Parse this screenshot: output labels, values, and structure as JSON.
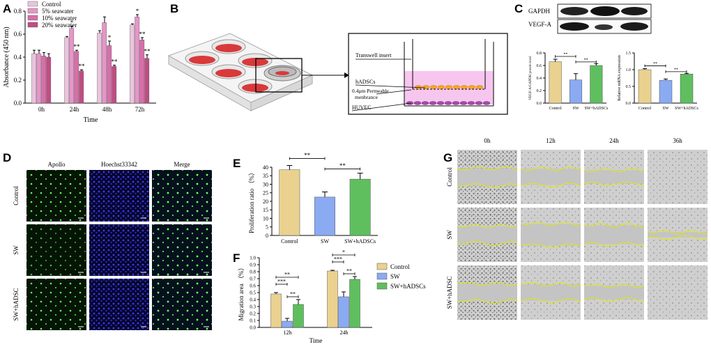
{
  "panel_labels": [
    "A",
    "B",
    "C",
    "D",
    "E",
    "F",
    "G"
  ],
  "colors": {
    "control": "#ead18f",
    "sw": "#8aaaf2",
    "swhadsc": "#5fbf5f",
    "a_control": "#eac4dc",
    "a_5": "#e596c8",
    "a_10": "#d86fa8",
    "a_20": "#c04d82"
  },
  "chart_data": [
    {
      "panel": "A",
      "type": "bar",
      "ylabel": "Absorbance (450 nm)",
      "xlabel": "Time",
      "ylim": [
        0,
        0.8
      ],
      "yticks": [
        "0.0",
        "0.2",
        "0.4",
        "0.6",
        "0.8"
      ],
      "categories": [
        "0h",
        "24h",
        "48h",
        "72h"
      ],
      "legend_position": "top-left",
      "series": [
        {
          "name": "Control",
          "values": [
            0.43,
            0.57,
            0.61,
            0.68
          ],
          "errors": [
            0.03,
            0.01,
            0.02,
            0.01
          ]
        },
        {
          "name": "5% seawater",
          "values": [
            0.43,
            0.65,
            0.7,
            0.75
          ],
          "errors": [
            0.03,
            0.02,
            0.05,
            0.02
          ]
        },
        {
          "name": "10% seawater",
          "values": [
            0.41,
            0.45,
            0.5,
            0.55
          ],
          "errors": [
            0.03,
            0.01,
            0.04,
            0.02
          ]
        },
        {
          "name": "20% seawater",
          "values": [
            0.4,
            0.28,
            0.32,
            0.39
          ],
          "errors": [
            0.03,
            0.01,
            0.01,
            0.03
          ]
        }
      ],
      "significance": [
        {
          "category": "24h",
          "marks": [
            "*",
            "**",
            "**"
          ]
        },
        {
          "category": "48h",
          "marks": [
            "",
            "*",
            "**"
          ]
        },
        {
          "category": "72h",
          "marks": [
            "*",
            "**",
            "**"
          ]
        }
      ]
    },
    {
      "panel": "C-left",
      "type": "bar",
      "ylabel": "VEGF-A/GAPDH protein level",
      "ylim": [
        0,
        0.8
      ],
      "yticks": [
        "0.0",
        "0.2",
        "0.4",
        "0.6",
        "0.8"
      ],
      "categories": [
        "Control",
        "SW",
        "SW+hADSCs"
      ],
      "values": [
        0.66,
        0.37,
        0.6
      ],
      "errors": [
        0.04,
        0.1,
        0.03
      ],
      "significance": [
        "**",
        "**"
      ]
    },
    {
      "panel": "C-right",
      "type": "bar",
      "ylabel": "Relative mRNA expression",
      "ylim": [
        0,
        1.5
      ],
      "yticks": [
        "0.0",
        "0.5",
        "1.0",
        "1.5"
      ],
      "categories": [
        "Control",
        "SW",
        "SW+hADSCs"
      ],
      "values": [
        1.0,
        0.68,
        0.87
      ],
      "errors": [
        0.03,
        0.04,
        0.02
      ],
      "significance": [
        "**",
        "**"
      ]
    },
    {
      "panel": "E",
      "type": "bar",
      "ylabel": "Proliferation ratio （%）",
      "ylim": [
        0,
        40
      ],
      "yticks": [
        "0",
        "5",
        "10",
        "15",
        "20",
        "25",
        "30",
        "35",
        "40"
      ],
      "categories": [
        "Control",
        "SW",
        "SW+hADSCs"
      ],
      "values": [
        38.5,
        22.5,
        33.0
      ],
      "errors": [
        2.5,
        3.0,
        3.5
      ],
      "significance": [
        "**",
        "**"
      ]
    },
    {
      "panel": "F",
      "type": "bar",
      "ylabel": "Migration area （%）",
      "xlabel": "Time",
      "ylim": [
        0,
        1.0
      ],
      "yticks": [
        "0.0",
        "0.1",
        "0.2",
        "0.3",
        "0.4",
        "0.5",
        "0.6",
        "0.7",
        "0.8",
        "0.9",
        "1.0"
      ],
      "categories": [
        "12h",
        "24h"
      ],
      "legend_position": "right",
      "series": [
        {
          "name": "Control",
          "values": [
            0.48,
            0.81
          ],
          "errors": [
            0.02,
            0.01
          ]
        },
        {
          "name": "SW",
          "values": [
            0.09,
            0.44
          ],
          "errors": [
            0.04,
            0.07
          ]
        },
        {
          "name": "SW+hADSCs",
          "values": [
            0.33,
            0.69
          ],
          "errors": [
            0.07,
            0.04
          ]
        }
      ],
      "significance": [
        {
          "category": "12h",
          "pairs": [
            [
              "Control",
              "SW+hADSCs",
              "**"
            ],
            [
              "Control",
              "SW",
              "***"
            ],
            [
              "SW",
              "SW+hADSCs",
              "**"
            ]
          ]
        },
        {
          "category": "24h",
          "pairs": [
            [
              "Control",
              "SW+hADSCs",
              "*"
            ],
            [
              "Control",
              "SW",
              "***"
            ],
            [
              "SW",
              "SW+hADSCs",
              "**"
            ]
          ]
        }
      ]
    }
  ],
  "panel_b": {
    "labels": [
      "Transwell insert",
      "hADSCs",
      "0.4μm Permeable",
      "menbrance",
      "HUVEC"
    ]
  },
  "panel_c_blot": {
    "labels": [
      "GAPDH",
      "VEGF-A"
    ]
  },
  "panel_d": {
    "columns": [
      "Apollo",
      "Hoechst33342",
      "Merge"
    ],
    "rows": [
      "Control",
      "SW",
      "SW+hADSC"
    ]
  },
  "panel_g": {
    "columns": [
      "0h",
      "12h",
      "24h",
      "36h"
    ],
    "rows": [
      "Control",
      "SW",
      "SW+hADSC"
    ]
  }
}
